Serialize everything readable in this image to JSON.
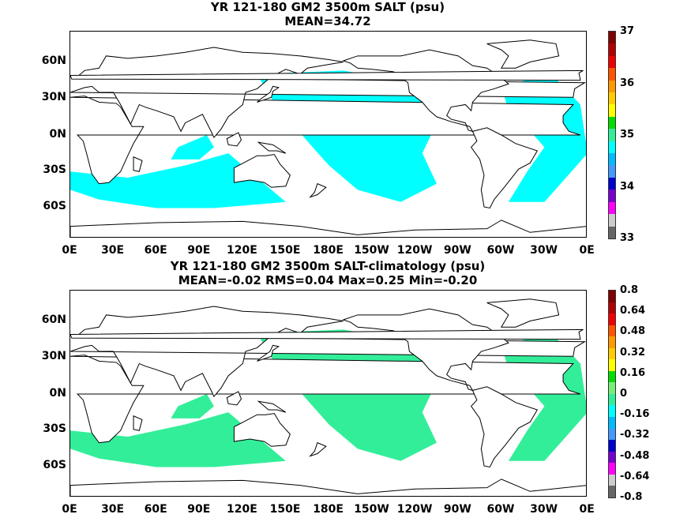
{
  "panels": [
    {
      "title_line1": "YR 121-180 GM2 3500m SALT (psu)",
      "title_line2": "MEAN=34.72",
      "fill_color": "#00FFFF",
      "colorbar_labels": [
        "37",
        "36",
        "35",
        "34",
        "33"
      ],
      "colorbar_colors": [
        "#7f0000",
        "#b00000",
        "#ee0000",
        "#ff5500",
        "#ff9900",
        "#ffcc00",
        "#ffff00",
        "#00dd00",
        "#33ee99",
        "#00ffff",
        "#00bbff",
        "#4499ff",
        "#0000cc",
        "#7700cc",
        "#ff00ff",
        "#cccccc",
        "#666666"
      ]
    },
    {
      "title_line1": "YR 121-180 GM2 3500m SALT-climatology (psu)",
      "title_line2": "MEAN=-0.02   RMS=0.04   Max=0.25   Min=-0.20",
      "fill_color": "#33EE99",
      "colorbar_labels": [
        "0.8",
        "0.64",
        "0.48",
        "0.32",
        "0.16",
        "0",
        "-0.16",
        "-0.32",
        "-0.48",
        "-0.64",
        "-0.8"
      ],
      "colorbar_colors": [
        "#7f0000",
        "#b00000",
        "#ee0000",
        "#ff5500",
        "#ff9900",
        "#ffcc00",
        "#ffff00",
        "#00dd00",
        "#77ee77",
        "#33ee99",
        "#00ffff",
        "#00bbff",
        "#4499ff",
        "#0000cc",
        "#7700cc",
        "#ff00ff",
        "#cccccc",
        "#666666"
      ]
    }
  ],
  "lat_labels": [
    "60N",
    "30N",
    "0N",
    "30S",
    "60S"
  ],
  "lon_labels": [
    "0E",
    "30E",
    "60E",
    "90E",
    "120E",
    "150E",
    "180E",
    "150W",
    "120W",
    "90W",
    "60W",
    "30W",
    "0E"
  ]
}
